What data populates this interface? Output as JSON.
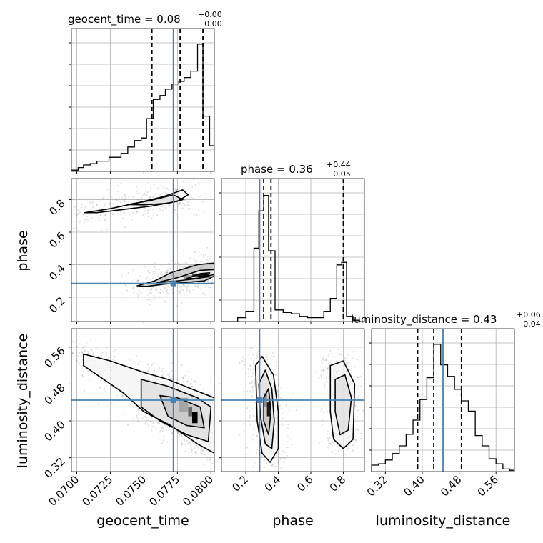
{
  "chart_data": {
    "type": "corner",
    "parameters": [
      "geocent_time",
      "phase",
      "luminosity_distance"
    ],
    "axis_labels": {
      "geocent_time": "geocent_time",
      "phase": "phase",
      "luminosity_distance": "luminosity_distance"
    },
    "titles": [
      {
        "param": "geocent_time",
        "prefix": "geocent_time = 0.08",
        "plus": "+0.00",
        "minus": "−0.00"
      },
      {
        "param": "phase",
        "prefix": "phase = 0.36",
        "plus": "+0.44",
        "minus": "−0.05"
      },
      {
        "param": "luminosity_distance",
        "prefix": "luminosity_distance = 0.43",
        "plus": "+0.06",
        "minus": "−0.04"
      }
    ],
    "ranges": {
      "geocent_time": [
        0.0696,
        0.08025
      ],
      "phase": [
        0.05,
        0.93
      ],
      "luminosity_distance": [
        0.29,
        0.6
      ]
    },
    "ticks": {
      "geocent_time": [
        "0.0700",
        "0.0725",
        "0.0750",
        "0.0775",
        "0.0800"
      ],
      "phase": [
        "0.2",
        "0.4",
        "0.6",
        "0.8"
      ],
      "luminosity_distance": [
        "0.32",
        "0.40",
        "0.48",
        "0.56"
      ]
    },
    "truths": {
      "geocent_time": 0.0772,
      "phase": 0.285,
      "luminosity_distance": 0.445
    },
    "quantiles": {
      "geocent_time": [
        0.0756,
        0.0777,
        0.0794
      ],
      "phase": [
        0.31,
        0.355,
        0.8
      ],
      "luminosity_distance": [
        0.39,
        0.425,
        0.485
      ]
    },
    "histograms": {
      "geocent_time": {
        "edges": [
          0.0696,
          0.0701,
          0.0705,
          0.071,
          0.0715,
          0.0719,
          0.0724,
          0.0729,
          0.0733,
          0.0738,
          0.0743,
          0.0748,
          0.0752,
          0.0757,
          0.0762,
          0.0766,
          0.0771,
          0.0776,
          0.078,
          0.0785,
          0.079,
          0.0794,
          0.0799,
          0.08025
        ],
        "counts": [
          0.01,
          0.03,
          0.05,
          0.06,
          0.08,
          0.08,
          0.11,
          0.11,
          0.14,
          0.19,
          0.24,
          0.26,
          0.41,
          0.56,
          0.59,
          0.64,
          0.68,
          0.7,
          0.73,
          0.78,
          0.99,
          0.43,
          0.2
        ]
      },
      "phase": {
        "edges": [
          0.05,
          0.1,
          0.15,
          0.2,
          0.25,
          0.28,
          0.31,
          0.34,
          0.38,
          0.43,
          0.48,
          0.53,
          0.58,
          0.63,
          0.68,
          0.72,
          0.76,
          0.79,
          0.82,
          0.86,
          0.9,
          0.93
        ],
        "counts": [
          0.0,
          0.0,
          0.03,
          0.08,
          0.57,
          0.86,
          0.98,
          0.55,
          0.09,
          0.07,
          0.06,
          0.04,
          0.03,
          0.03,
          0.08,
          0.18,
          0.44,
          0.46,
          0.04,
          0.01,
          0.0
        ]
      },
      "luminosity_distance": {
        "edges": [
          0.29,
          0.305,
          0.32,
          0.335,
          0.35,
          0.365,
          0.38,
          0.395,
          0.41,
          0.425,
          0.44,
          0.455,
          0.47,
          0.485,
          0.5,
          0.515,
          0.53,
          0.545,
          0.56,
          0.575,
          0.59,
          0.6
        ],
        "counts": [
          0.05,
          0.06,
          0.09,
          0.14,
          0.2,
          0.29,
          0.4,
          0.56,
          0.73,
          0.99,
          0.83,
          0.74,
          0.64,
          0.55,
          0.47,
          0.28,
          0.2,
          0.1,
          0.06,
          0.02,
          0.01
        ]
      }
    },
    "panels_2d": [
      {
        "x": "geocent_time",
        "y": "phase",
        "contours": [
          [
            [
              0.0706,
              0.72
            ],
            [
              0.0725,
              0.745
            ],
            [
              0.0745,
              0.78
            ],
            [
              0.0765,
              0.82
            ],
            [
              0.0779,
              0.86
            ],
            [
              0.0783,
              0.83
            ],
            [
              0.0775,
              0.79
            ],
            [
              0.0755,
              0.76
            ],
            [
              0.0735,
              0.74
            ],
            [
              0.0715,
              0.72
            ],
            [
              0.0706,
              0.72
            ]
          ],
          [
            [
              0.0738,
              0.77
            ],
            [
              0.0755,
              0.795
            ],
            [
              0.0772,
              0.83
            ],
            [
              0.0779,
              0.8
            ],
            [
              0.0768,
              0.778
            ],
            [
              0.075,
              0.768
            ],
            [
              0.0738,
              0.77
            ]
          ],
          [
            [
              0.0745,
              0.27
            ],
            [
              0.0758,
              0.3
            ],
            [
              0.077,
              0.35
            ],
            [
              0.079,
              0.4
            ],
            [
              0.08025,
              0.41
            ],
            [
              0.08025,
              0.33
            ],
            [
              0.0795,
              0.3
            ],
            [
              0.078,
              0.29
            ],
            [
              0.0765,
              0.28
            ],
            [
              0.0752,
              0.266
            ],
            [
              0.0745,
              0.27
            ]
          ],
          [
            [
              0.076,
              0.29
            ],
            [
              0.0775,
              0.32
            ],
            [
              0.0792,
              0.365
            ],
            [
              0.08025,
              0.37
            ],
            [
              0.08025,
              0.34
            ],
            [
              0.079,
              0.315
            ],
            [
              0.0775,
              0.3
            ],
            [
              0.076,
              0.29
            ]
          ],
          [
            [
              0.0782,
              0.315
            ],
            [
              0.0792,
              0.345
            ],
            [
              0.0799,
              0.35
            ],
            [
              0.0798,
              0.325
            ],
            [
              0.0788,
              0.315
            ],
            [
              0.0782,
              0.315
            ]
          ]
        ],
        "cells": [
          {
            "x": [
              0.0786,
              0.079
            ],
            "y": [
              0.325,
              0.345
            ],
            "shade": 0.3
          },
          {
            "x": [
              0.079,
              0.0794
            ],
            "y": [
              0.325,
              0.345
            ],
            "shade": 0.05
          },
          {
            "x": [
              0.0794,
              0.0798
            ],
            "y": [
              0.325,
              0.345
            ],
            "shade": 0.0
          },
          {
            "x": [
              0.078,
              0.0786
            ],
            "y": [
              0.31,
              0.335
            ],
            "shade": 0.6
          }
        ]
      },
      {
        "x": "geocent_time",
        "y": "luminosity_distance",
        "contours": [
          [
            [
              0.0705,
              0.545
            ],
            [
              0.0725,
              0.53
            ],
            [
              0.075,
              0.505
            ],
            [
              0.0768,
              0.49
            ],
            [
              0.0785,
              0.47
            ],
            [
              0.08025,
              0.45
            ],
            [
              0.08025,
              0.33
            ],
            [
              0.079,
              0.35
            ],
            [
              0.077,
              0.39
            ],
            [
              0.075,
              0.42
            ],
            [
              0.0735,
              0.46
            ],
            [
              0.072,
              0.49
            ],
            [
              0.0705,
              0.52
            ],
            [
              0.0705,
              0.545
            ]
          ],
          [
            [
              0.0748,
              0.49
            ],
            [
              0.0768,
              0.475
            ],
            [
              0.079,
              0.45
            ],
            [
              0.08,
              0.43
            ],
            [
              0.0798,
              0.355
            ],
            [
              0.0782,
              0.37
            ],
            [
              0.0762,
              0.4
            ],
            [
              0.0748,
              0.43
            ],
            [
              0.0748,
              0.49
            ]
          ],
          [
            [
              0.0762,
              0.455
            ],
            [
              0.0775,
              0.45
            ],
            [
              0.0792,
              0.43
            ],
            [
              0.0795,
              0.385
            ],
            [
              0.0782,
              0.39
            ],
            [
              0.0768,
              0.41
            ],
            [
              0.0762,
              0.455
            ]
          ]
        ],
        "cells": [
          {
            "x": [
              0.0783,
              0.0786
            ],
            "y": [
              0.41,
              0.43
            ],
            "shade": 0.4
          },
          {
            "x": [
              0.0786,
              0.079
            ],
            "y": [
              0.395,
              0.42
            ],
            "shade": 0.0
          },
          {
            "x": [
              0.0776,
              0.0783
            ],
            "y": [
              0.42,
              0.45
            ],
            "shade": 0.65
          }
        ]
      },
      {
        "x": "phase",
        "y": "luminosity_distance",
        "contours": [
          [
            [
              0.26,
              0.52
            ],
            [
              0.3,
              0.54
            ],
            [
              0.37,
              0.5
            ],
            [
              0.4,
              0.42
            ],
            [
              0.4,
              0.34
            ],
            [
              0.35,
              0.31
            ],
            [
              0.3,
              0.33
            ],
            [
              0.27,
              0.4
            ],
            [
              0.26,
              0.52
            ]
          ],
          [
            [
              0.28,
              0.48
            ],
            [
              0.32,
              0.51
            ],
            [
              0.36,
              0.47
            ],
            [
              0.375,
              0.4
            ],
            [
              0.36,
              0.34
            ],
            [
              0.32,
              0.35
            ],
            [
              0.29,
              0.41
            ],
            [
              0.28,
              0.48
            ]
          ],
          [
            [
              0.31,
              0.45
            ],
            [
              0.34,
              0.47
            ],
            [
              0.355,
              0.42
            ],
            [
              0.34,
              0.37
            ],
            [
              0.31,
              0.4
            ],
            [
              0.31,
              0.45
            ]
          ],
          [
            [
              0.72,
              0.52
            ],
            [
              0.8,
              0.53
            ],
            [
              0.87,
              0.48
            ],
            [
              0.86,
              0.36
            ],
            [
              0.8,
              0.34
            ],
            [
              0.74,
              0.36
            ],
            [
              0.72,
              0.42
            ],
            [
              0.72,
              0.52
            ]
          ],
          [
            [
              0.75,
              0.49
            ],
            [
              0.81,
              0.5
            ],
            [
              0.85,
              0.45
            ],
            [
              0.83,
              0.38
            ],
            [
              0.78,
              0.37
            ],
            [
              0.75,
              0.42
            ],
            [
              0.75,
              0.49
            ]
          ]
        ],
        "cells": [
          {
            "x": [
              0.31,
              0.33
            ],
            "y": [
              0.43,
              0.46
            ],
            "shade": 0.55
          },
          {
            "x": [
              0.33,
              0.35
            ],
            "y": [
              0.41,
              0.44
            ],
            "shade": 0.1
          }
        ]
      }
    ],
    "scatter_seed": 7
  }
}
